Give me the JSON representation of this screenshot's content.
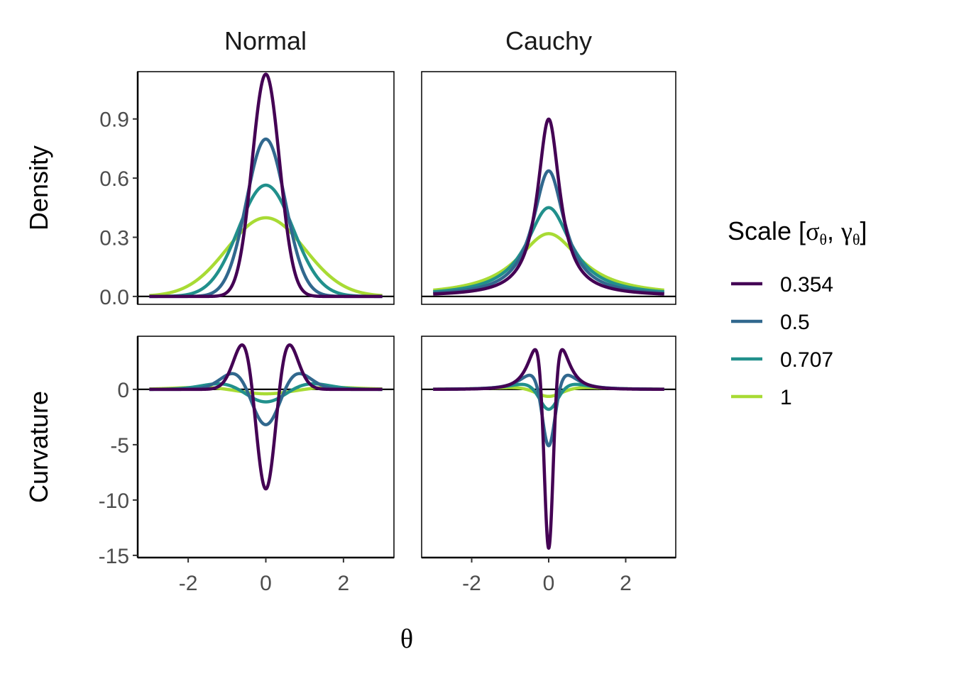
{
  "chart_data": {
    "type": "line",
    "facet_columns": [
      "Normal",
      "Cauchy"
    ],
    "facet_rows": [
      "Density",
      "Curvature"
    ],
    "xlabel": "θ",
    "x_range": [
      -3,
      3
    ],
    "x_ticks": [
      -2,
      0,
      2
    ],
    "density_ylim": [
      -0.04,
      1.14
    ],
    "density_ticks": [
      "0.0",
      "0.3",
      "0.6",
      "0.9"
    ],
    "curvature_ylim": [
      -15.2,
      4.8
    ],
    "curvature_ticks": [
      "0",
      "-5",
      "-10",
      "-15"
    ],
    "legend": {
      "title_main": "Scale [",
      "title_sym1": "σ",
      "title_sub1": "θ",
      "title_sep": ", ",
      "title_sym2": "γ",
      "title_sub2": "θ",
      "title_end": "]",
      "placement": "right"
    },
    "series": [
      {
        "name": "0.354",
        "scale": 0.354,
        "color": "#440154"
      },
      {
        "name": "0.5",
        "scale": 0.5,
        "color": "#31688E"
      },
      {
        "name": "0.707",
        "scale": 0.707,
        "color": "#21908C"
      },
      {
        "name": "1",
        "scale": 1,
        "color": "#A8DB34"
      }
    ],
    "functions": {
      "Normal": {
        "Density": "exp(-x^2/(2s^2)) / (s*sqrt(2*pi))",
        "Curvature": "second derivative of density: (x^2 - s^2)/s^4 * pdf(x)"
      },
      "Cauchy": {
        "Density": "1 / (pi*s*(1 + (x/s)^2))",
        "Curvature": "second derivative of density: (2/(pi*s^3)) * (3u^2 - 1)/(1+u^2)^3, u = x/s"
      }
    }
  }
}
